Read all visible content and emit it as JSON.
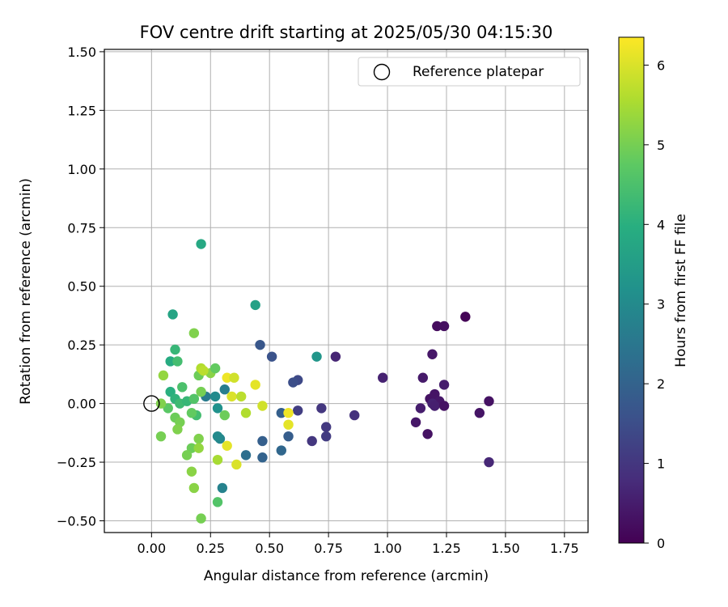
{
  "chart_data": {
    "type": "scatter",
    "title": "FOV centre drift starting at 2025/05/30 04:15:30",
    "xlabel": "Angular distance from reference (arcmin)",
    "ylabel": "Rotation from reference (arcmin)",
    "xlim": [
      -0.2,
      1.85
    ],
    "ylim": [
      -0.55,
      1.51
    ],
    "xticks": [
      0.0,
      0.25,
      0.5,
      0.75,
      1.0,
      1.25,
      1.5,
      1.75
    ],
    "xtick_labels": [
      "0.00",
      "0.25",
      "0.50",
      "0.75",
      "1.00",
      "1.25",
      "1.50",
      "1.75"
    ],
    "yticks": [
      -0.5,
      -0.25,
      0.0,
      0.25,
      0.5,
      0.75,
      1.0,
      1.25,
      1.5
    ],
    "ytick_labels": [
      "−0.50",
      "−0.25",
      "0.00",
      "0.25",
      "0.50",
      "0.75",
      "1.00",
      "1.25",
      "1.50"
    ],
    "grid": true,
    "legend": {
      "position": "top-right",
      "label": "Reference platepar"
    },
    "reference_point": {
      "x": 0.0,
      "y": 0.0
    },
    "colorbar": {
      "label": "Hours from first FF file",
      "range": [
        0,
        6.35
      ],
      "ticks": [
        0,
        1,
        2,
        3,
        4,
        5,
        6
      ],
      "tick_labels": [
        "0",
        "1",
        "2",
        "3",
        "4",
        "5",
        "6"
      ],
      "colormap": "viridis"
    },
    "points": [
      {
        "x": 1.33,
        "y": 0.37,
        "c": 0.05
      },
      {
        "x": 1.21,
        "y": 0.33,
        "c": 0.2
      },
      {
        "x": 1.24,
        "y": 0.33,
        "c": 0.25
      },
      {
        "x": 1.19,
        "y": 0.21,
        "c": 0.4
      },
      {
        "x": 1.15,
        "y": 0.11,
        "c": 0.45
      },
      {
        "x": 1.24,
        "y": 0.08,
        "c": 0.5
      },
      {
        "x": 1.18,
        "y": 0.02,
        "c": 0.3
      },
      {
        "x": 1.2,
        "y": 0.04,
        "c": 0.35
      },
      {
        "x": 1.22,
        "y": 0.01,
        "c": 0.4
      },
      {
        "x": 1.19,
        "y": 0.0,
        "c": 0.6
      },
      {
        "x": 1.2,
        "y": -0.01,
        "c": 0.55
      },
      {
        "x": 1.24,
        "y": -0.01,
        "c": 0.3
      },
      {
        "x": 1.14,
        "y": -0.02,
        "c": 0.5
      },
      {
        "x": 1.43,
        "y": 0.01,
        "c": 0.3
      },
      {
        "x": 1.39,
        "y": -0.04,
        "c": 0.35
      },
      {
        "x": 1.12,
        "y": -0.08,
        "c": 0.4
      },
      {
        "x": 1.17,
        "y": -0.13,
        "c": 0.3
      },
      {
        "x": 1.43,
        "y": -0.25,
        "c": 0.7
      },
      {
        "x": 0.98,
        "y": 0.11,
        "c": 0.6
      },
      {
        "x": 0.78,
        "y": 0.2,
        "c": 0.65
      },
      {
        "x": 0.86,
        "y": -0.05,
        "c": 0.9
      },
      {
        "x": 0.72,
        "y": -0.02,
        "c": 1.0
      },
      {
        "x": 0.74,
        "y": -0.1,
        "c": 1.05
      },
      {
        "x": 0.74,
        "y": -0.14,
        "c": 1.1
      },
      {
        "x": 0.68,
        "y": -0.16,
        "c": 1.0
      },
      {
        "x": 0.62,
        "y": -0.03,
        "c": 1.15
      },
      {
        "x": 0.62,
        "y": 0.1,
        "c": 1.4
      },
      {
        "x": 0.6,
        "y": 0.09,
        "c": 1.5
      },
      {
        "x": 0.51,
        "y": 0.2,
        "c": 1.6
      },
      {
        "x": 0.46,
        "y": 0.25,
        "c": 1.7
      },
      {
        "x": 0.7,
        "y": 0.2,
        "c": 3.3
      },
      {
        "x": 0.55,
        "y": -0.04,
        "c": 1.9
      },
      {
        "x": 0.58,
        "y": -0.14,
        "c": 1.85
      },
      {
        "x": 0.55,
        "y": -0.2,
        "c": 2.1
      },
      {
        "x": 0.47,
        "y": -0.16,
        "c": 1.9
      },
      {
        "x": 0.47,
        "y": -0.23,
        "c": 2.0
      },
      {
        "x": 0.4,
        "y": -0.22,
        "c": 2.3
      },
      {
        "x": 0.44,
        "y": 0.42,
        "c": 3.6
      },
      {
        "x": 0.3,
        "y": -0.36,
        "c": 2.8
      },
      {
        "x": 0.29,
        "y": -0.15,
        "c": 2.9
      },
      {
        "x": 0.28,
        "y": -0.14,
        "c": 3.0
      },
      {
        "x": 0.31,
        "y": 0.06,
        "c": 2.7
      },
      {
        "x": 0.23,
        "y": 0.03,
        "c": 2.6
      },
      {
        "x": 0.27,
        "y": 0.03,
        "c": 3.0
      },
      {
        "x": 0.28,
        "y": -0.02,
        "c": 3.2
      },
      {
        "x": 0.21,
        "y": 0.68,
        "c": 3.8
      },
      {
        "x": 0.09,
        "y": 0.38,
        "c": 3.7
      },
      {
        "x": 0.08,
        "y": 0.18,
        "c": 3.9
      },
      {
        "x": 0.1,
        "y": 0.23,
        "c": 4.2
      },
      {
        "x": 0.11,
        "y": 0.18,
        "c": 4.4
      },
      {
        "x": 0.08,
        "y": 0.05,
        "c": 4.0
      },
      {
        "x": 0.1,
        "y": 0.02,
        "c": 4.1
      },
      {
        "x": 0.12,
        "y": 0.0,
        "c": 4.3
      },
      {
        "x": 0.13,
        "y": 0.07,
        "c": 4.5
      },
      {
        "x": 0.15,
        "y": 0.01,
        "c": 4.2
      },
      {
        "x": 0.18,
        "y": 0.02,
        "c": 4.6
      },
      {
        "x": 0.19,
        "y": -0.05,
        "c": 4.4
      },
      {
        "x": 0.17,
        "y": -0.04,
        "c": 4.8
      },
      {
        "x": 0.07,
        "y": -0.02,
        "c": 4.7
      },
      {
        "x": 0.1,
        "y": -0.06,
        "c": 4.9
      },
      {
        "x": 0.12,
        "y": -0.08,
        "c": 5.0
      },
      {
        "x": 0.11,
        "y": -0.11,
        "c": 5.1
      },
      {
        "x": 0.2,
        "y": 0.12,
        "c": 4.9
      },
      {
        "x": 0.21,
        "y": 0.05,
        "c": 5.0
      },
      {
        "x": 0.25,
        "y": 0.13,
        "c": 5.2
      },
      {
        "x": 0.27,
        "y": 0.15,
        "c": 4.8
      },
      {
        "x": 0.18,
        "y": 0.3,
        "c": 5.1
      },
      {
        "x": 0.05,
        "y": 0.12,
        "c": 5.3
      },
      {
        "x": 0.04,
        "y": 0.0,
        "c": 5.1
      },
      {
        "x": 0.04,
        "y": -0.14,
        "c": 5.0
      },
      {
        "x": 0.17,
        "y": -0.19,
        "c": 4.9
      },
      {
        "x": 0.15,
        "y": -0.22,
        "c": 5.0
      },
      {
        "x": 0.17,
        "y": -0.29,
        "c": 5.2
      },
      {
        "x": 0.2,
        "y": -0.15,
        "c": 5.1
      },
      {
        "x": 0.2,
        "y": -0.19,
        "c": 5.3
      },
      {
        "x": 0.18,
        "y": -0.36,
        "c": 5.2
      },
      {
        "x": 0.28,
        "y": -0.42,
        "c": 4.6
      },
      {
        "x": 0.21,
        "y": -0.49,
        "c": 5.0
      },
      {
        "x": 0.31,
        "y": -0.05,
        "c": 4.9
      },
      {
        "x": 0.28,
        "y": -0.24,
        "c": 5.5
      },
      {
        "x": 0.21,
        "y": 0.15,
        "c": 5.6
      },
      {
        "x": 0.22,
        "y": 0.14,
        "c": 5.7
      },
      {
        "x": 0.32,
        "y": 0.11,
        "c": 6.2
      },
      {
        "x": 0.35,
        "y": 0.11,
        "c": 5.9
      },
      {
        "x": 0.34,
        "y": 0.03,
        "c": 6.0
      },
      {
        "x": 0.38,
        "y": 0.03,
        "c": 5.7
      },
      {
        "x": 0.4,
        "y": -0.04,
        "c": 5.6
      },
      {
        "x": 0.44,
        "y": 0.08,
        "c": 6.1
      },
      {
        "x": 0.47,
        "y": -0.01,
        "c": 5.9
      },
      {
        "x": 0.58,
        "y": -0.04,
        "c": 6.2
      },
      {
        "x": 0.58,
        "y": -0.09,
        "c": 6.1
      },
      {
        "x": 0.32,
        "y": -0.18,
        "c": 6.1
      },
      {
        "x": 0.36,
        "y": -0.26,
        "c": 6.0
      }
    ]
  }
}
